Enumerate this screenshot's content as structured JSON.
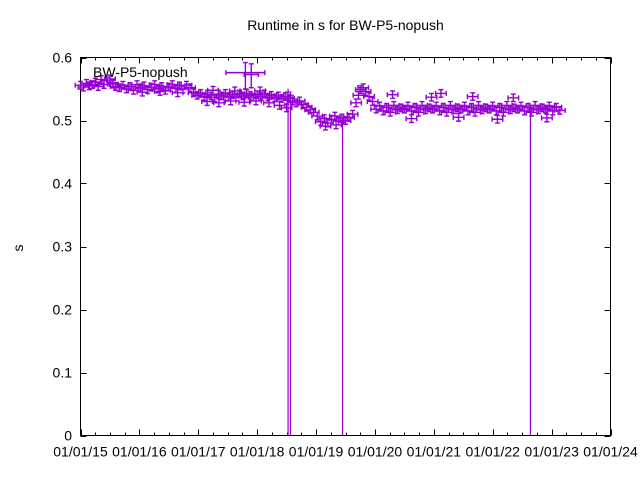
{
  "title": "Runtime in s for BW-P5-nopush",
  "legend_label": "BW-P5-nopush",
  "ylabel": "s",
  "accent_color": "#9400D3",
  "axis_color": "#000000",
  "chart_data": {
    "type": "scatter",
    "marker": "plus-with-xy-errorbars",
    "series_name": "BW-P5-nopush",
    "x_unit": "years since 2015-01-01",
    "xlim": [
      0,
      9
    ],
    "ylim": [
      0,
      0.6
    ],
    "grid": false,
    "legend_position": "top-left-inside",
    "xtick_values": [
      0,
      1,
      2,
      3,
      4,
      5,
      6,
      7,
      8,
      9
    ],
    "xtick_labels": [
      "01/01/15",
      "01/01/16",
      "01/01/17",
      "01/01/18",
      "01/01/19",
      "01/01/20",
      "01/01/21",
      "01/01/22",
      "01/01/23",
      "01/01/24"
    ],
    "x_minor_step": 0.25,
    "ytick_values": [
      0,
      0.1,
      0.2,
      0.3,
      0.4,
      0.5,
      0.6
    ],
    "ytick_labels": [
      "0",
      "0.1",
      "0.2",
      "0.3",
      "0.4",
      "0.5",
      "0.6"
    ],
    "default_xerr": 0.09,
    "default_yerr": 0.006,
    "points": [
      [
        0.0,
        0.556
      ],
      [
        0.05,
        0.553
      ],
      [
        0.1,
        0.559
      ],
      [
        0.15,
        0.555
      ],
      [
        0.2,
        0.557
      ],
      [
        0.25,
        0.561
      ],
      [
        0.3,
        0.554
      ],
      [
        0.35,
        0.565
      ],
      [
        0.4,
        0.557
      ],
      [
        0.45,
        0.563
      ],
      [
        0.5,
        0.566
      ],
      [
        0.55,
        0.558
      ],
      [
        0.6,
        0.554
      ],
      [
        0.66,
        0.552
      ],
      [
        0.72,
        0.556
      ],
      [
        0.78,
        0.55
      ],
      [
        0.84,
        0.554
      ],
      [
        0.9,
        0.548
      ],
      [
        0.96,
        0.557
      ],
      [
        1.02,
        0.552
      ],
      [
        1.08,
        0.555
      ],
      [
        1.14,
        0.549
      ],
      [
        1.2,
        0.553
      ],
      [
        1.26,
        0.557
      ],
      [
        1.32,
        0.55
      ],
      [
        1.38,
        0.554
      ],
      [
        1.44,
        0.548
      ],
      [
        1.5,
        0.553
      ],
      [
        1.56,
        0.557
      ],
      [
        1.62,
        0.551
      ],
      [
        1.68,
        0.555
      ],
      [
        1.74,
        0.55
      ],
      [
        1.8,
        0.556
      ],
      [
        1.86,
        0.552
      ],
      [
        1.05,
        0.545
      ],
      [
        1.35,
        0.546
      ],
      [
        1.65,
        0.544
      ],
      [
        1.92,
        0.544
      ],
      [
        1.98,
        0.54
      ],
      [
        2.04,
        0.543
      ],
      [
        2.1,
        0.538
      ],
      [
        2.16,
        0.542
      ],
      [
        2.22,
        0.539
      ],
      [
        2.28,
        0.536
      ],
      [
        2.34,
        0.542
      ],
      [
        2.4,
        0.539
      ],
      [
        2.46,
        0.543
      ],
      [
        2.52,
        0.538
      ],
      [
        2.58,
        0.541
      ],
      [
        2.64,
        0.537
      ],
      [
        2.7,
        0.542
      ],
      [
        2.76,
        0.539
      ],
      [
        2.82,
        0.543
      ],
      [
        2.88,
        0.54
      ],
      [
        2.94,
        0.537
      ],
      [
        3.0,
        0.541
      ],
      [
        3.06,
        0.538
      ],
      [
        3.12,
        0.542
      ],
      [
        3.18,
        0.537
      ],
      [
        3.24,
        0.54
      ],
      [
        3.3,
        0.536
      ],
      [
        3.36,
        0.539
      ],
      [
        3.42,
        0.535
      ],
      [
        3.48,
        0.538
      ],
      [
        2.15,
        0.53
      ],
      [
        2.35,
        0.528
      ],
      [
        2.55,
        0.531
      ],
      [
        2.78,
        0.529
      ],
      [
        2.98,
        0.531
      ],
      [
        3.2,
        0.528
      ],
      [
        3.38,
        0.524
      ],
      [
        3.5,
        0.52
      ],
      [
        2.25,
        0.548
      ],
      [
        2.62,
        0.547
      ],
      [
        3.05,
        0.547
      ],
      [
        3.54,
        0.535
      ],
      [
        3.6,
        0.531
      ],
      [
        3.66,
        0.528
      ],
      [
        3.72,
        0.531
      ],
      [
        3.78,
        0.525
      ],
      [
        3.84,
        0.521
      ],
      [
        3.9,
        0.517
      ],
      [
        3.96,
        0.513
      ],
      [
        4.02,
        0.507
      ],
      [
        4.08,
        0.498
      ],
      [
        4.14,
        0.503
      ],
      [
        4.2,
        0.496
      ],
      [
        4.26,
        0.502
      ],
      [
        4.32,
        0.507
      ],
      [
        4.38,
        0.499
      ],
      [
        4.44,
        0.504
      ],
      [
        4.5,
        0.5
      ],
      [
        4.56,
        0.505
      ],
      [
        4.62,
        0.51
      ],
      [
        4.16,
        0.491
      ],
      [
        4.34,
        0.493
      ],
      [
        4.68,
        0.528
      ],
      [
        4.72,
        0.54
      ],
      [
        4.76,
        0.549
      ],
      [
        4.8,
        0.552
      ],
      [
        4.84,
        0.546
      ],
      [
        4.9,
        0.538
      ],
      [
        4.96,
        0.53
      ],
      [
        5.02,
        0.518
      ],
      [
        5.08,
        0.523
      ],
      [
        5.14,
        0.515
      ],
      [
        5.2,
        0.521
      ],
      [
        5.26,
        0.513
      ],
      [
        5.32,
        0.524
      ],
      [
        5.38,
        0.517
      ],
      [
        5.44,
        0.52
      ],
      [
        5.5,
        0.518
      ],
      [
        5.56,
        0.523
      ],
      [
        5.62,
        0.515
      ],
      [
        5.68,
        0.521
      ],
      [
        5.74,
        0.513
      ],
      [
        5.8,
        0.524
      ],
      [
        5.86,
        0.517
      ],
      [
        5.92,
        0.52
      ],
      [
        5.98,
        0.518
      ],
      [
        6.04,
        0.523
      ],
      [
        6.1,
        0.515
      ],
      [
        6.16,
        0.521
      ],
      [
        6.22,
        0.513
      ],
      [
        6.28,
        0.524
      ],
      [
        6.34,
        0.517
      ],
      [
        6.4,
        0.52
      ],
      [
        6.46,
        0.518
      ],
      [
        6.52,
        0.523
      ],
      [
        6.58,
        0.515
      ],
      [
        6.64,
        0.521
      ],
      [
        6.7,
        0.513
      ],
      [
        6.76,
        0.524
      ],
      [
        6.82,
        0.517
      ],
      [
        6.88,
        0.52
      ],
      [
        6.94,
        0.518
      ],
      [
        7.0,
        0.523
      ],
      [
        7.06,
        0.515
      ],
      [
        7.12,
        0.521
      ],
      [
        7.18,
        0.513
      ],
      [
        7.24,
        0.524
      ],
      [
        7.3,
        0.517
      ],
      [
        7.36,
        0.52
      ],
      [
        7.42,
        0.518
      ],
      [
        7.48,
        0.523
      ],
      [
        7.54,
        0.515
      ],
      [
        7.6,
        0.521
      ],
      [
        7.66,
        0.513
      ],
      [
        7.72,
        0.524
      ],
      [
        7.78,
        0.517
      ],
      [
        7.84,
        0.52
      ],
      [
        7.9,
        0.518
      ],
      [
        7.96,
        0.523
      ],
      [
        8.02,
        0.515
      ],
      [
        8.08,
        0.521
      ],
      [
        8.14,
        0.516
      ],
      [
        5.3,
        0.541
      ],
      [
        5.96,
        0.537
      ],
      [
        6.12,
        0.543
      ],
      [
        6.66,
        0.538
      ],
      [
        7.35,
        0.536
      ],
      [
        5.62,
        0.503
      ],
      [
        6.42,
        0.505
      ],
      [
        7.08,
        0.502
      ],
      [
        7.92,
        0.504
      ]
    ],
    "outliers": [
      {
        "t": 2.8,
        "v": 0.576,
        "yhi": 0.592,
        "ylo": 0.55,
        "xerr": 0.33
      },
      {
        "t": 2.9,
        "v": 0.573,
        "yhi": 0.59,
        "ylo": 0.552,
        "xerr": 0.12
      }
    ],
    "dropline_points": [
      {
        "t": 3.525,
        "v": 0.545
      },
      {
        "t": 3.565,
        "v": 0.54
      },
      {
        "t": 4.45,
        "v": 0.497
      },
      {
        "t": 7.64,
        "v": 0.518
      }
    ]
  }
}
